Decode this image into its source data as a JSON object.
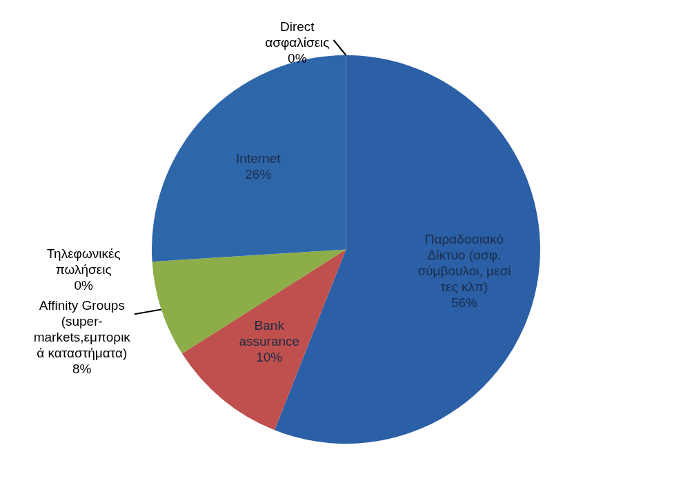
{
  "chart_data": {
    "type": "pie",
    "categories": [
      "Παραδοσιακό\nΔίκτυο (ασφ.\nσύμβουλοι, μεσί\nτες κλπ)",
      "Bank\nassurance",
      "Affinity Groups\n(super-\nmarkets,εμπορικ\nά καταστήματα)",
      "Τηλεφωνικές\nπωλήσεις",
      "Internet",
      "Direct\nασφαλίσεις"
    ],
    "values": [
      56,
      10,
      8,
      0,
      26,
      0
    ],
    "colors": [
      "#2b5fa6",
      "#c0504d",
      "#8cad48",
      "#8064a2",
      "#2e66aa",
      "#4bacc6"
    ],
    "value_labels": [
      "56%",
      "10%",
      "8%",
      "0%",
      "26%",
      "0%"
    ],
    "legend": false
  }
}
